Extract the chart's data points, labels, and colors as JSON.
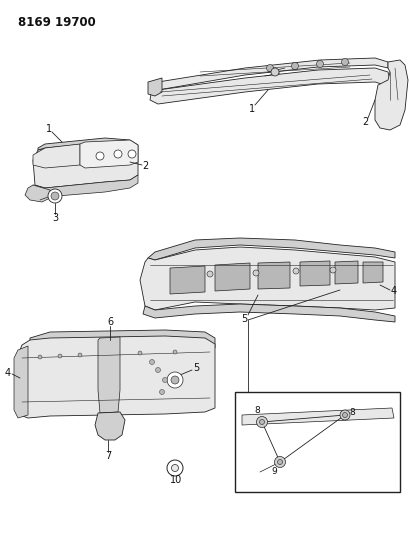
{
  "title": "8169 19700",
  "bg": "#ffffff",
  "lc": "#222222",
  "lw": 0.6,
  "fig_w": 4.1,
  "fig_h": 5.33,
  "dpi": 100
}
